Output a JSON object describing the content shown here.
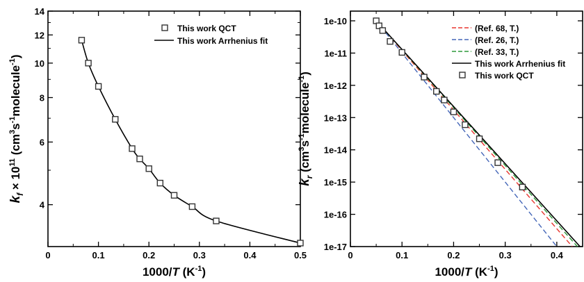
{
  "chart_data": [
    {
      "type": "scatter",
      "y_scale": "log",
      "xlim": [
        0,
        0.5
      ],
      "ylim": [
        3.05,
        14
      ],
      "x_ticks": [
        0,
        0.1,
        0.2,
        0.3,
        0.4,
        0.5
      ],
      "x_tick_labels": [
        "0",
        "0.1",
        "0.2",
        "0.3",
        "0.4",
        "0.5"
      ],
      "y_ticks": [
        4,
        6,
        8,
        10,
        12,
        14
      ],
      "y_tick_labels": [
        "4",
        "6",
        "8",
        "10",
        "12",
        "14"
      ],
      "xlabel": {
        "pre": "1000/",
        "italic": "T",
        "post": " (K",
        "sup": "-1",
        "end": ")"
      },
      "ylabel": {
        "k": "k",
        "sub": "f",
        "mid": " × 10",
        "exp": "11",
        "a": " (cm",
        "s1": "3",
        "b": "s",
        "s2": "-1",
        "c": "molecule",
        "s3": "-1",
        "d": ")"
      },
      "legend_position": "top-right",
      "series": [
        {
          "name": "This work QCT",
          "style": "markers",
          "marker": "square",
          "color": "#333333",
          "x": [
            0.0667,
            0.08,
            0.1,
            0.1333,
            0.1667,
            0.1818,
            0.2,
            0.2222,
            0.25,
            0.2857,
            0.3333,
            0.5
          ],
          "y": [
            11.6,
            10.0,
            8.6,
            6.95,
            5.75,
            5.38,
            5.05,
            4.6,
            4.25,
            3.95,
            3.6,
            3.12
          ]
        },
        {
          "name": "This work Arrhenius fit",
          "style": "line",
          "color": "#000000",
          "x": [
            0.0667,
            0.08,
            0.1,
            0.1333,
            0.1667,
            0.1818,
            0.2,
            0.2222,
            0.25,
            0.2857,
            0.3333,
            0.5
          ],
          "y": [
            11.6,
            10.0,
            8.6,
            6.95,
            5.75,
            5.38,
            5.05,
            4.6,
            4.25,
            3.95,
            3.6,
            3.12
          ]
        }
      ]
    },
    {
      "type": "scatter",
      "y_scale": "log",
      "xlim": [
        0,
        0.45
      ],
      "ylim": [
        1e-17,
        2e-10
      ],
      "x_ticks": [
        0,
        0.1,
        0.2,
        0.3,
        0.4
      ],
      "x_tick_labels": [
        "0",
        "0.1",
        "0.2",
        "0.3",
        "0.4"
      ],
      "y_ticks": [
        1e-17,
        1e-16,
        1e-15,
        1e-14,
        1e-13,
        1e-12,
        1e-11,
        1e-10
      ],
      "y_tick_labels": [
        "1e-17",
        "1e-16",
        "1e-15",
        "1e-14",
        "1e-13",
        "1e-12",
        "1e-11",
        "1e-10"
      ],
      "xlabel": {
        "pre": "1000/",
        "italic": "T",
        "post": " (K",
        "sup": "-1",
        "end": ")"
      },
      "ylabel": {
        "k": "k",
        "sub": "r",
        "a": " (cm",
        "s1": "3",
        "b": "s",
        "s2": "-1",
        "c": "molecule",
        "s3": "-1",
        "d": ")"
      },
      "legend_position": "top-right",
      "series": [
        {
          "name": "(Ref. 68, T.)",
          "style": "dashed",
          "color": "#e8352e",
          "x": [
            0.05,
            0.43
          ],
          "y": [
            1e-10,
            1e-17
          ]
        },
        {
          "name": "(Ref. 26, T.)",
          "style": "dashed",
          "color": "#4466b8",
          "x": [
            0.05,
            0.4
          ],
          "y": [
            1e-10,
            1e-17
          ]
        },
        {
          "name": "(Ref. 33, T.)",
          "style": "dashed",
          "color": "#2e9a3a",
          "x": [
            0.05,
            0.44
          ],
          "y": [
            1e-10,
            1e-17
          ]
        },
        {
          "name": "This work Arrhenius fit",
          "style": "line",
          "color": "#000000",
          "x": [
            0.05,
            0.445
          ],
          "y": [
            1e-10,
            1e-17
          ]
        },
        {
          "name": "This work QCT",
          "style": "markers",
          "marker": "square",
          "color": "#333333",
          "x": [
            0.05,
            0.0556,
            0.0625,
            0.0769,
            0.1,
            0.1429,
            0.1667,
            0.1818,
            0.2,
            0.2222,
            0.25,
            0.2857,
            0.3333
          ],
          "y": [
            1e-10,
            7e-11,
            5e-11,
            2.3e-11,
            1.05e-11,
            1.8e-12,
            6.5e-13,
            3.5e-13,
            1.5e-13,
            6e-14,
            2.2e-14,
            4e-15,
            7e-16
          ]
        }
      ]
    }
  ]
}
